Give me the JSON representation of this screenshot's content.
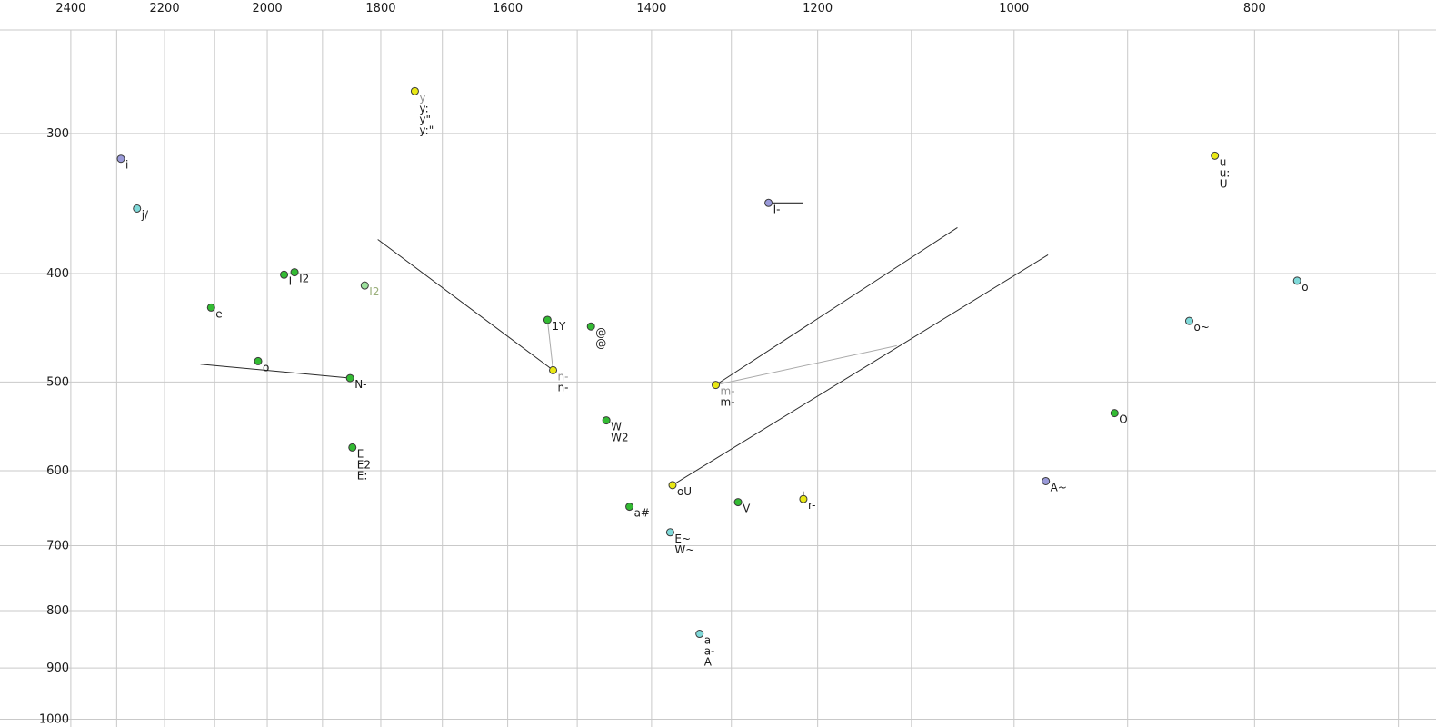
{
  "colors": {
    "background": "#ffffff",
    "grid": "#c9c9c9",
    "tick_text": "#1a1a1a",
    "label_text": "#1a1a1a",
    "label_gray": "#8f8f8f",
    "label_pale": "#9aaf7a",
    "dot_stroke": "#3a3a3a",
    "line": "#2a2a2a",
    "line_light": "#aaaaaa",
    "green": "#33bb33",
    "yellow": "#e9e814",
    "cyan": "#7fd9d9",
    "lavender": "#9a9ad9",
    "palegreen": "#9ce09c"
  },
  "chart_data": {
    "type": "scatter",
    "x_axis": {
      "scale": "log",
      "reversed": true,
      "tick_label_values": [
        2400,
        2200,
        2000,
        1800,
        1600,
        1400,
        1200,
        1000,
        800
      ],
      "grid_values": [
        2400,
        2300,
        2200,
        2100,
        2000,
        1900,
        1800,
        1700,
        1600,
        1500,
        1400,
        1300,
        1200,
        1100,
        1000,
        900,
        800,
        700
      ],
      "value_at_left_edge": 2563,
      "value_at_right_edge": 676
    },
    "y_axis": {
      "scale": "log",
      "tick_label_values": [
        300,
        400,
        500,
        600,
        700,
        800,
        900,
        1000
      ],
      "grid_values": [
        300,
        400,
        500,
        600,
        700,
        800,
        900,
        1000
      ],
      "value_at_top_edge": 242.5,
      "value_at_bottom_edge": 1016
    },
    "points": [
      {
        "f2": 1744,
        "f1": 275,
        "color": "yellow",
        "labels": [
          {
            "t": "y",
            "c": "gray"
          },
          {
            "t": "y:"
          },
          {
            "t": "y\""
          },
          {
            "t": "y:\""
          }
        ]
      },
      {
        "f2": 2291,
        "f1": 316,
        "color": "lavender",
        "labels": [
          {
            "t": "i"
          }
        ]
      },
      {
        "f2": 2257,
        "f1": 350,
        "color": "cyan",
        "labels": [
          {
            "t": "j/"
          }
        ]
      },
      {
        "f2": 830,
        "f1": 314,
        "color": "yellow",
        "labels": [
          {
            "t": "u"
          },
          {
            "t": "u:"
          },
          {
            "t": "U"
          }
        ]
      },
      {
        "f2": 1256,
        "f1": 346,
        "color": "lavender",
        "labels": [
          {
            "t": "I-"
          }
        ]
      },
      {
        "f2": 1969,
        "f1": 401,
        "color": "green",
        "labels": [
          {
            "t": "I"
          }
        ]
      },
      {
        "f2": 1950,
        "f1": 399,
        "color": "green",
        "labels": [
          {
            "t": "I2"
          }
        ]
      },
      {
        "f2": 1827,
        "f1": 410,
        "color": "palegreen",
        "labels": [
          {
            "t": "I2",
            "c": "pale"
          }
        ]
      },
      {
        "f2": 2107,
        "f1": 429,
        "color": "green",
        "labels": [
          {
            "t": "e"
          }
        ]
      },
      {
        "f2": 2017,
        "f1": 479,
        "color": "green",
        "labels": [
          {
            "t": "o"
          }
        ]
      },
      {
        "f2": 1852,
        "f1": 496,
        "color": "green",
        "labels": [
          {
            "t": "N-"
          }
        ]
      },
      {
        "f2": 1542,
        "f1": 440,
        "color": "green",
        "labels": [
          {
            "t": "1Y"
          }
        ]
      },
      {
        "f2": 1481,
        "f1": 446,
        "color": "green",
        "labels": [
          {
            "t": "@"
          },
          {
            "t": "@-"
          }
        ]
      },
      {
        "f2": 1534,
        "f1": 488,
        "color": "yellow",
        "labels": [
          {
            "t": "n-",
            "c": "gray"
          },
          {
            "t": "n-"
          }
        ]
      },
      {
        "f2": 1460,
        "f1": 541,
        "color": "green",
        "labels": [
          {
            "t": "W"
          },
          {
            "t": "W2"
          }
        ]
      },
      {
        "f2": 1848,
        "f1": 572,
        "color": "green",
        "labels": [
          {
            "t": "E"
          },
          {
            "t": "E2"
          },
          {
            "t": "E:"
          }
        ]
      },
      {
        "f2": 1319,
        "f1": 503,
        "color": "yellow",
        "labels": [
          {
            "t": "m-",
            "c": "gray"
          },
          {
            "t": "m-"
          }
        ]
      },
      {
        "f2": 1373,
        "f1": 618,
        "color": "yellow",
        "labels": [
          {
            "t": "oU"
          }
        ]
      },
      {
        "f2": 1429,
        "f1": 646,
        "color": "green",
        "labels": [
          {
            "t": "a#"
          }
        ]
      },
      {
        "f2": 1292,
        "f1": 640,
        "color": "green",
        "labels": [
          {
            "t": "V"
          }
        ]
      },
      {
        "f2": 1216,
        "f1": 636,
        "color": "yellow",
        "labels": [
          {
            "t": "r-"
          }
        ]
      },
      {
        "f2": 1376,
        "f1": 681,
        "color": "cyan",
        "labels": [
          {
            "t": "E~"
          },
          {
            "t": "W~"
          }
        ]
      },
      {
        "f2": 971,
        "f1": 613,
        "color": "lavender",
        "labels": [
          {
            "t": "A~"
          }
        ]
      },
      {
        "f2": 911,
        "f1": 533,
        "color": "green",
        "labels": [
          {
            "t": "O"
          }
        ]
      },
      {
        "f2": 850,
        "f1": 441,
        "color": "cyan",
        "labels": [
          {
            "t": "o~"
          }
        ]
      },
      {
        "f2": 769,
        "f1": 406,
        "color": "cyan",
        "labels": [
          {
            "t": "o"
          }
        ]
      },
      {
        "f2": 1339,
        "f1": 839,
        "color": "cyan",
        "labels": [
          {
            "t": "a"
          },
          {
            "t": "a-"
          },
          {
            "t": "A"
          }
        ]
      }
    ],
    "segments": [
      {
        "f2a": 1805,
        "f1a": 373,
        "f2b": 1534,
        "f1b": 488,
        "w": 1
      },
      {
        "f2a": 1542,
        "f1a": 440,
        "f2b": 1534,
        "f1b": 488,
        "w": 1,
        "light": true
      },
      {
        "f2a": 2128,
        "f1a": 482,
        "f2b": 1852,
        "f1b": 496,
        "w": 1
      },
      {
        "f2a": 1256,
        "f1a": 346,
        "f2b": 1216,
        "f1b": 346,
        "w": 1.2
      },
      {
        "f2a": 1319,
        "f1a": 503,
        "f2b": 1054,
        "f1b": 364,
        "w": 1
      },
      {
        "f2a": 1373,
        "f1a": 618,
        "f2b": 969,
        "f1b": 385,
        "w": 1
      },
      {
        "f2a": 1319,
        "f1a": 503,
        "f2b": 1115,
        "f1b": 464,
        "w": 1,
        "light": true
      },
      {
        "f2a": 1216,
        "f1a": 626,
        "f2b": 1216,
        "f1b": 636,
        "w": 1
      }
    ]
  }
}
